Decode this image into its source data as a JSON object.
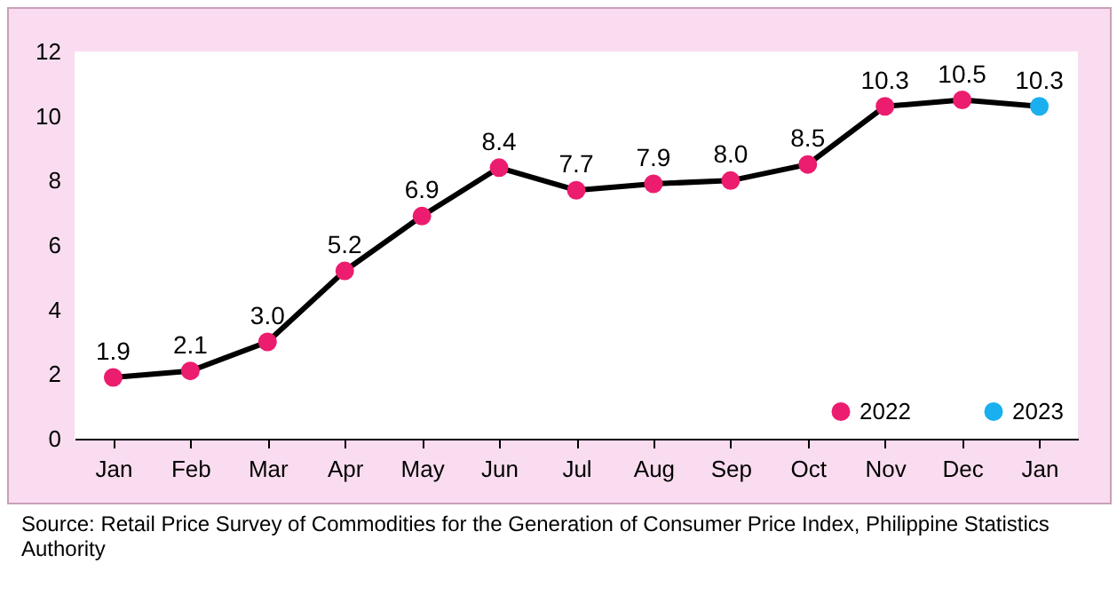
{
  "chart_data": {
    "type": "line",
    "categories": [
      "Jan",
      "Feb",
      "Mar",
      "Apr",
      "May",
      "Jun",
      "Jul",
      "Aug",
      "Sep",
      "Oct",
      "Nov",
      "Dec",
      "Jan"
    ],
    "series": [
      {
        "color": "#000000",
        "marker": "none",
        "values": [
          1.9,
          2.1,
          3.0,
          5.2,
          6.9,
          8.4,
          7.7,
          7.9,
          8.0,
          8.5,
          10.3,
          10.5,
          10.3
        ]
      },
      {
        "type": "scatter",
        "name": "2022",
        "color": "#ec1c6e",
        "marker": "circle",
        "values": [
          1.9,
          2.1,
          3.0,
          5.2,
          6.9,
          8.4,
          7.7,
          7.9,
          8.0,
          8.5,
          10.3,
          10.5,
          null
        ],
        "value_labels": [
          "1.9",
          "2.1",
          "3.0",
          "5.2",
          "6.9",
          "8.4",
          "7.7",
          "7.9",
          "8.0",
          "8.5",
          "10.3",
          "10.5",
          null
        ]
      },
      {
        "type": "scatter",
        "name": "2023",
        "color": "#1ab0ef",
        "marker": "circle",
        "values": [
          null,
          null,
          null,
          null,
          null,
          null,
          null,
          null,
          null,
          null,
          null,
          null,
          10.3
        ],
        "value_labels": [
          null,
          null,
          null,
          null,
          null,
          null,
          null,
          null,
          null,
          null,
          null,
          null,
          "10.3"
        ]
      }
    ],
    "ylim": [
      0,
      12
    ],
    "yticks": [
      0,
      2,
      4,
      6,
      8,
      10,
      12
    ],
    "legend": "bottom right",
    "annotations": [
      "Source: Retail Price Survey of Commodities for the Generation of Consumer Price Index, Philippine Statistics Authority"
    ]
  }
}
